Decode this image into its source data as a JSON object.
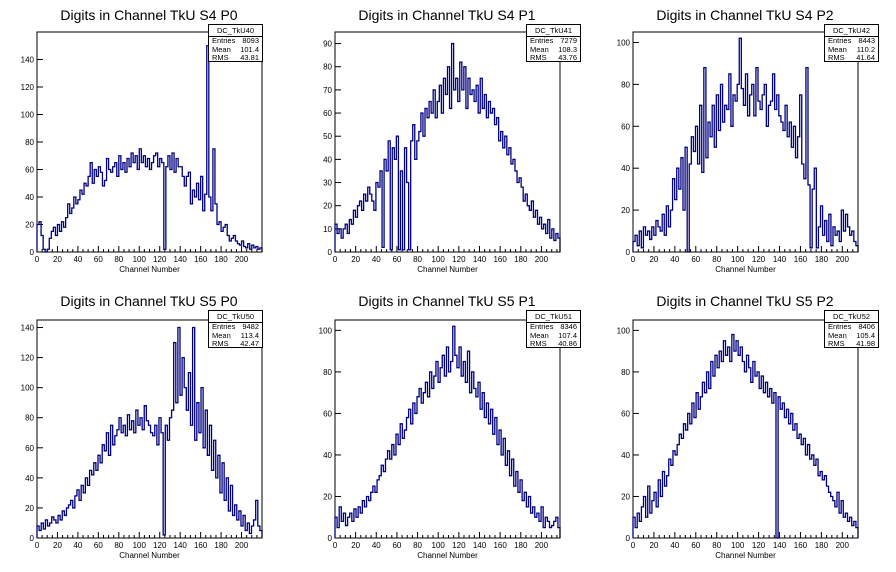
{
  "canvas": {
    "background": "#ffffff",
    "line_color": "#000080"
  },
  "chart_data": [
    {
      "type": "histogram",
      "title": "Digits in Channel TkU S4 P0",
      "xlabel": "Channel Number",
      "xlim": [
        0,
        220
      ],
      "ylim": [
        0,
        160
      ],
      "xticks": [
        0,
        20,
        40,
        60,
        80,
        100,
        120,
        140,
        160,
        180,
        200
      ],
      "yticks": [
        0,
        20,
        40,
        60,
        80,
        100,
        120,
        140
      ],
      "stats": {
        "name": "DC_TkU40",
        "entries": "8093",
        "mean": "101.4",
        "rms": "43.81"
      },
      "values": [
        20,
        22,
        12,
        2,
        0,
        2,
        10,
        15,
        18,
        12,
        20,
        15,
        22,
        18,
        25,
        35,
        28,
        32,
        40,
        35,
        38,
        45,
        42,
        50,
        48,
        55,
        65,
        50,
        60,
        55,
        62,
        58,
        48,
        52,
        68,
        60,
        58,
        62,
        65,
        55,
        70,
        60,
        65,
        58,
        68,
        62,
        72,
        65,
        70,
        60,
        75,
        65,
        70,
        62,
        68,
        60,
        65,
        70,
        72,
        62,
        68,
        65,
        2,
        62,
        70,
        60,
        72,
        58,
        68,
        62,
        62,
        55,
        48,
        55,
        58,
        35,
        45,
        40,
        50,
        38,
        55,
        30,
        42,
        150,
        40,
        30,
        75,
        35,
        20,
        22,
        15,
        18,
        20,
        12,
        8,
        10,
        12,
        8,
        6,
        5,
        8,
        4,
        3,
        6,
        2,
        5,
        3,
        4,
        2,
        3
      ]
    },
    {
      "type": "histogram",
      "title": "Digits in Channel TkU S4 P1",
      "xlabel": "Channel Number",
      "xlim": [
        0,
        218
      ],
      "ylim": [
        0,
        95
      ],
      "xticks": [
        0,
        20,
        40,
        60,
        80,
        100,
        120,
        140,
        160,
        180,
        200
      ],
      "yticks": [
        0,
        10,
        20,
        30,
        40,
        50,
        60,
        70,
        80,
        90
      ],
      "stats": {
        "name": "DC_TkU41",
        "entries": "7279",
        "mean": "108.3",
        "rms": "43.76"
      },
      "values": [
        12,
        8,
        10,
        6,
        10,
        12,
        8,
        14,
        12,
        18,
        15,
        20,
        22,
        18,
        25,
        22,
        28,
        25,
        22,
        18,
        30,
        28,
        35,
        2,
        40,
        35,
        48,
        1,
        45,
        40,
        50,
        1,
        35,
        1,
        45,
        30,
        1,
        48,
        55,
        40,
        48,
        52,
        60,
        50,
        62,
        58,
        65,
        60,
        70,
        58,
        65,
        72,
        60,
        75,
        68,
        80,
        62,
        90,
        70,
        75,
        65,
        82,
        70,
        80,
        62,
        75,
        68,
        70,
        65,
        72,
        60,
        75,
        62,
        68,
        58,
        65,
        60,
        62,
        55,
        58,
        48,
        52,
        45,
        50,
        42,
        45,
        38,
        40,
        35,
        30,
        32,
        28,
        22,
        25,
        20,
        18,
        22,
        15,
        18,
        12,
        15,
        10,
        12,
        8,
        14,
        6,
        10,
        5,
        8,
        6
      ]
    },
    {
      "type": "histogram",
      "title": "Digits in Channel TkU S4 P2",
      "xlabel": "Channel Number",
      "xlim": [
        0,
        215
      ],
      "ylim": [
        0,
        105
      ],
      "xticks": [
        0,
        20,
        40,
        60,
        80,
        100,
        120,
        140,
        160,
        180,
        200
      ],
      "yticks": [
        0,
        20,
        40,
        60,
        80,
        100
      ],
      "stats": {
        "name": "DC_TkU42",
        "entries": "8443",
        "mean": "110.2",
        "rms": "41.64"
      },
      "values": [
        5,
        8,
        3,
        10,
        2,
        12,
        8,
        10,
        6,
        12,
        8,
        15,
        12,
        10,
        18,
        8,
        22,
        12,
        20,
        35,
        25,
        40,
        30,
        45,
        20,
        50,
        0,
        42,
        55,
        48,
        60,
        42,
        70,
        38,
        88,
        45,
        62,
        55,
        70,
        50,
        75,
        58,
        80,
        62,
        70,
        68,
        85,
        60,
        75,
        72,
        80,
        102,
        78,
        70,
        85,
        65,
        75,
        80,
        65,
        88,
        72,
        68,
        75,
        80,
        60,
        70,
        72,
        85,
        68,
        75,
        65,
        62,
        58,
        70,
        55,
        62,
        50,
        60,
        45,
        55,
        75,
        42,
        35,
        88,
        32,
        2,
        30,
        40,
        2,
        12,
        22,
        8,
        15,
        5,
        18,
        3,
        12,
        8,
        10,
        5,
        20,
        10,
        18,
        12,
        8,
        10,
        5,
        3
      ]
    },
    {
      "type": "histogram",
      "title": "Digits in Channel TkU S5 P0",
      "xlabel": "Channel Number",
      "xlim": [
        0,
        220
      ],
      "ylim": [
        0,
        145
      ],
      "xticks": [
        0,
        20,
        40,
        60,
        80,
        100,
        120,
        140,
        160,
        180,
        200
      ],
      "yticks": [
        0,
        20,
        40,
        60,
        80,
        100,
        120,
        140
      ],
      "stats": {
        "name": "DC_TkU50",
        "entries": "9482",
        "mean": "113.4",
        "rms": "42.47"
      },
      "values": [
        8,
        5,
        10,
        6,
        12,
        8,
        10,
        14,
        12,
        10,
        15,
        12,
        18,
        15,
        20,
        22,
        25,
        20,
        28,
        32,
        25,
        35,
        30,
        40,
        35,
        45,
        42,
        50,
        45,
        55,
        50,
        62,
        58,
        70,
        55,
        75,
        62,
        68,
        72,
        80,
        70,
        75,
        68,
        82,
        72,
        78,
        70,
        85,
        75,
        80,
        72,
        88,
        78,
        75,
        70,
        68,
        75,
        62,
        80,
        70,
        2,
        75,
        65,
        80,
        85,
        130,
        90,
        140,
        95,
        120,
        100,
        85,
        110,
        75,
        140,
        65,
        90,
        70,
        100,
        60,
        85,
        55,
        75,
        45,
        65,
        40,
        55,
        30,
        50,
        25,
        40,
        18,
        35,
        15,
        22,
        12,
        18,
        8,
        15,
        5,
        10,
        3,
        8,
        12,
        25,
        8,
        5
      ]
    },
    {
      "type": "histogram",
      "title": "Digits in Channel TkU S5 P1",
      "xlabel": "Channel Number",
      "xlim": [
        0,
        218
      ],
      "ylim": [
        0,
        105
      ],
      "xticks": [
        0,
        20,
        40,
        60,
        80,
        100,
        120,
        140,
        160,
        180,
        200
      ],
      "yticks": [
        0,
        20,
        40,
        60,
        80,
        100
      ],
      "stats": {
        "name": "DC_TkU51",
        "entries": "8346",
        "mean": "107.4",
        "rms": "40.86"
      },
      "values": [
        10,
        5,
        15,
        8,
        12,
        6,
        10,
        12,
        8,
        14,
        10,
        15,
        12,
        18,
        15,
        20,
        18,
        22,
        25,
        22,
        28,
        30,
        35,
        32,
        38,
        42,
        38,
        45,
        40,
        50,
        45,
        55,
        48,
        52,
        58,
        62,
        55,
        65,
        60,
        68,
        72,
        65,
        70,
        75,
        68,
        80,
        72,
        78,
        85,
        75,
        82,
        88,
        78,
        92,
        80,
        85,
        102,
        88,
        82,
        92,
        78,
        85,
        75,
        90,
        70,
        80,
        72,
        68,
        75,
        62,
        70,
        58,
        65,
        55,
        62,
        50,
        58,
        45,
        52,
        40,
        48,
        35,
        42,
        30,
        38,
        25,
        32,
        22,
        28,
        18,
        22,
        15,
        20,
        12,
        15,
        10,
        12,
        8,
        15,
        5,
        10,
        8,
        5,
        6,
        8,
        10,
        5
      ]
    },
    {
      "type": "histogram",
      "title": "Digits in Channel TkU S5 P2",
      "xlabel": "Channel Number",
      "xlim": [
        0,
        215
      ],
      "ylim": [
        0,
        105
      ],
      "xticks": [
        0,
        20,
        40,
        60,
        80,
        100,
        120,
        140,
        160,
        180,
        200
      ],
      "yticks": [
        0,
        20,
        40,
        60,
        80,
        100
      ],
      "stats": {
        "name": "DC_TkU52",
        "entries": "8406",
        "mean": "105.4",
        "rms": "41.98"
      },
      "values": [
        10,
        5,
        12,
        8,
        15,
        20,
        10,
        25,
        12,
        18,
        22,
        15,
        28,
        20,
        32,
        25,
        30,
        38,
        35,
        42,
        40,
        45,
        50,
        48,
        55,
        52,
        60,
        55,
        65,
        58,
        70,
        62,
        68,
        75,
        70,
        80,
        72,
        85,
        78,
        88,
        82,
        90,
        85,
        95,
        88,
        92,
        85,
        98,
        90,
        95,
        88,
        92,
        85,
        80,
        88,
        82,
        75,
        85,
        78,
        80,
        72,
        78,
        70,
        75,
        68,
        72,
        65,
        70,
        0,
        68,
        62,
        65,
        58,
        62,
        55,
        60,
        52,
        55,
        48,
        50,
        45,
        48,
        40,
        45,
        38,
        40,
        35,
        38,
        30,
        32,
        28,
        30,
        25,
        22,
        20,
        18,
        15,
        22,
        12,
        18,
        10,
        12,
        8,
        10,
        6,
        8,
        5
      ]
    }
  ]
}
